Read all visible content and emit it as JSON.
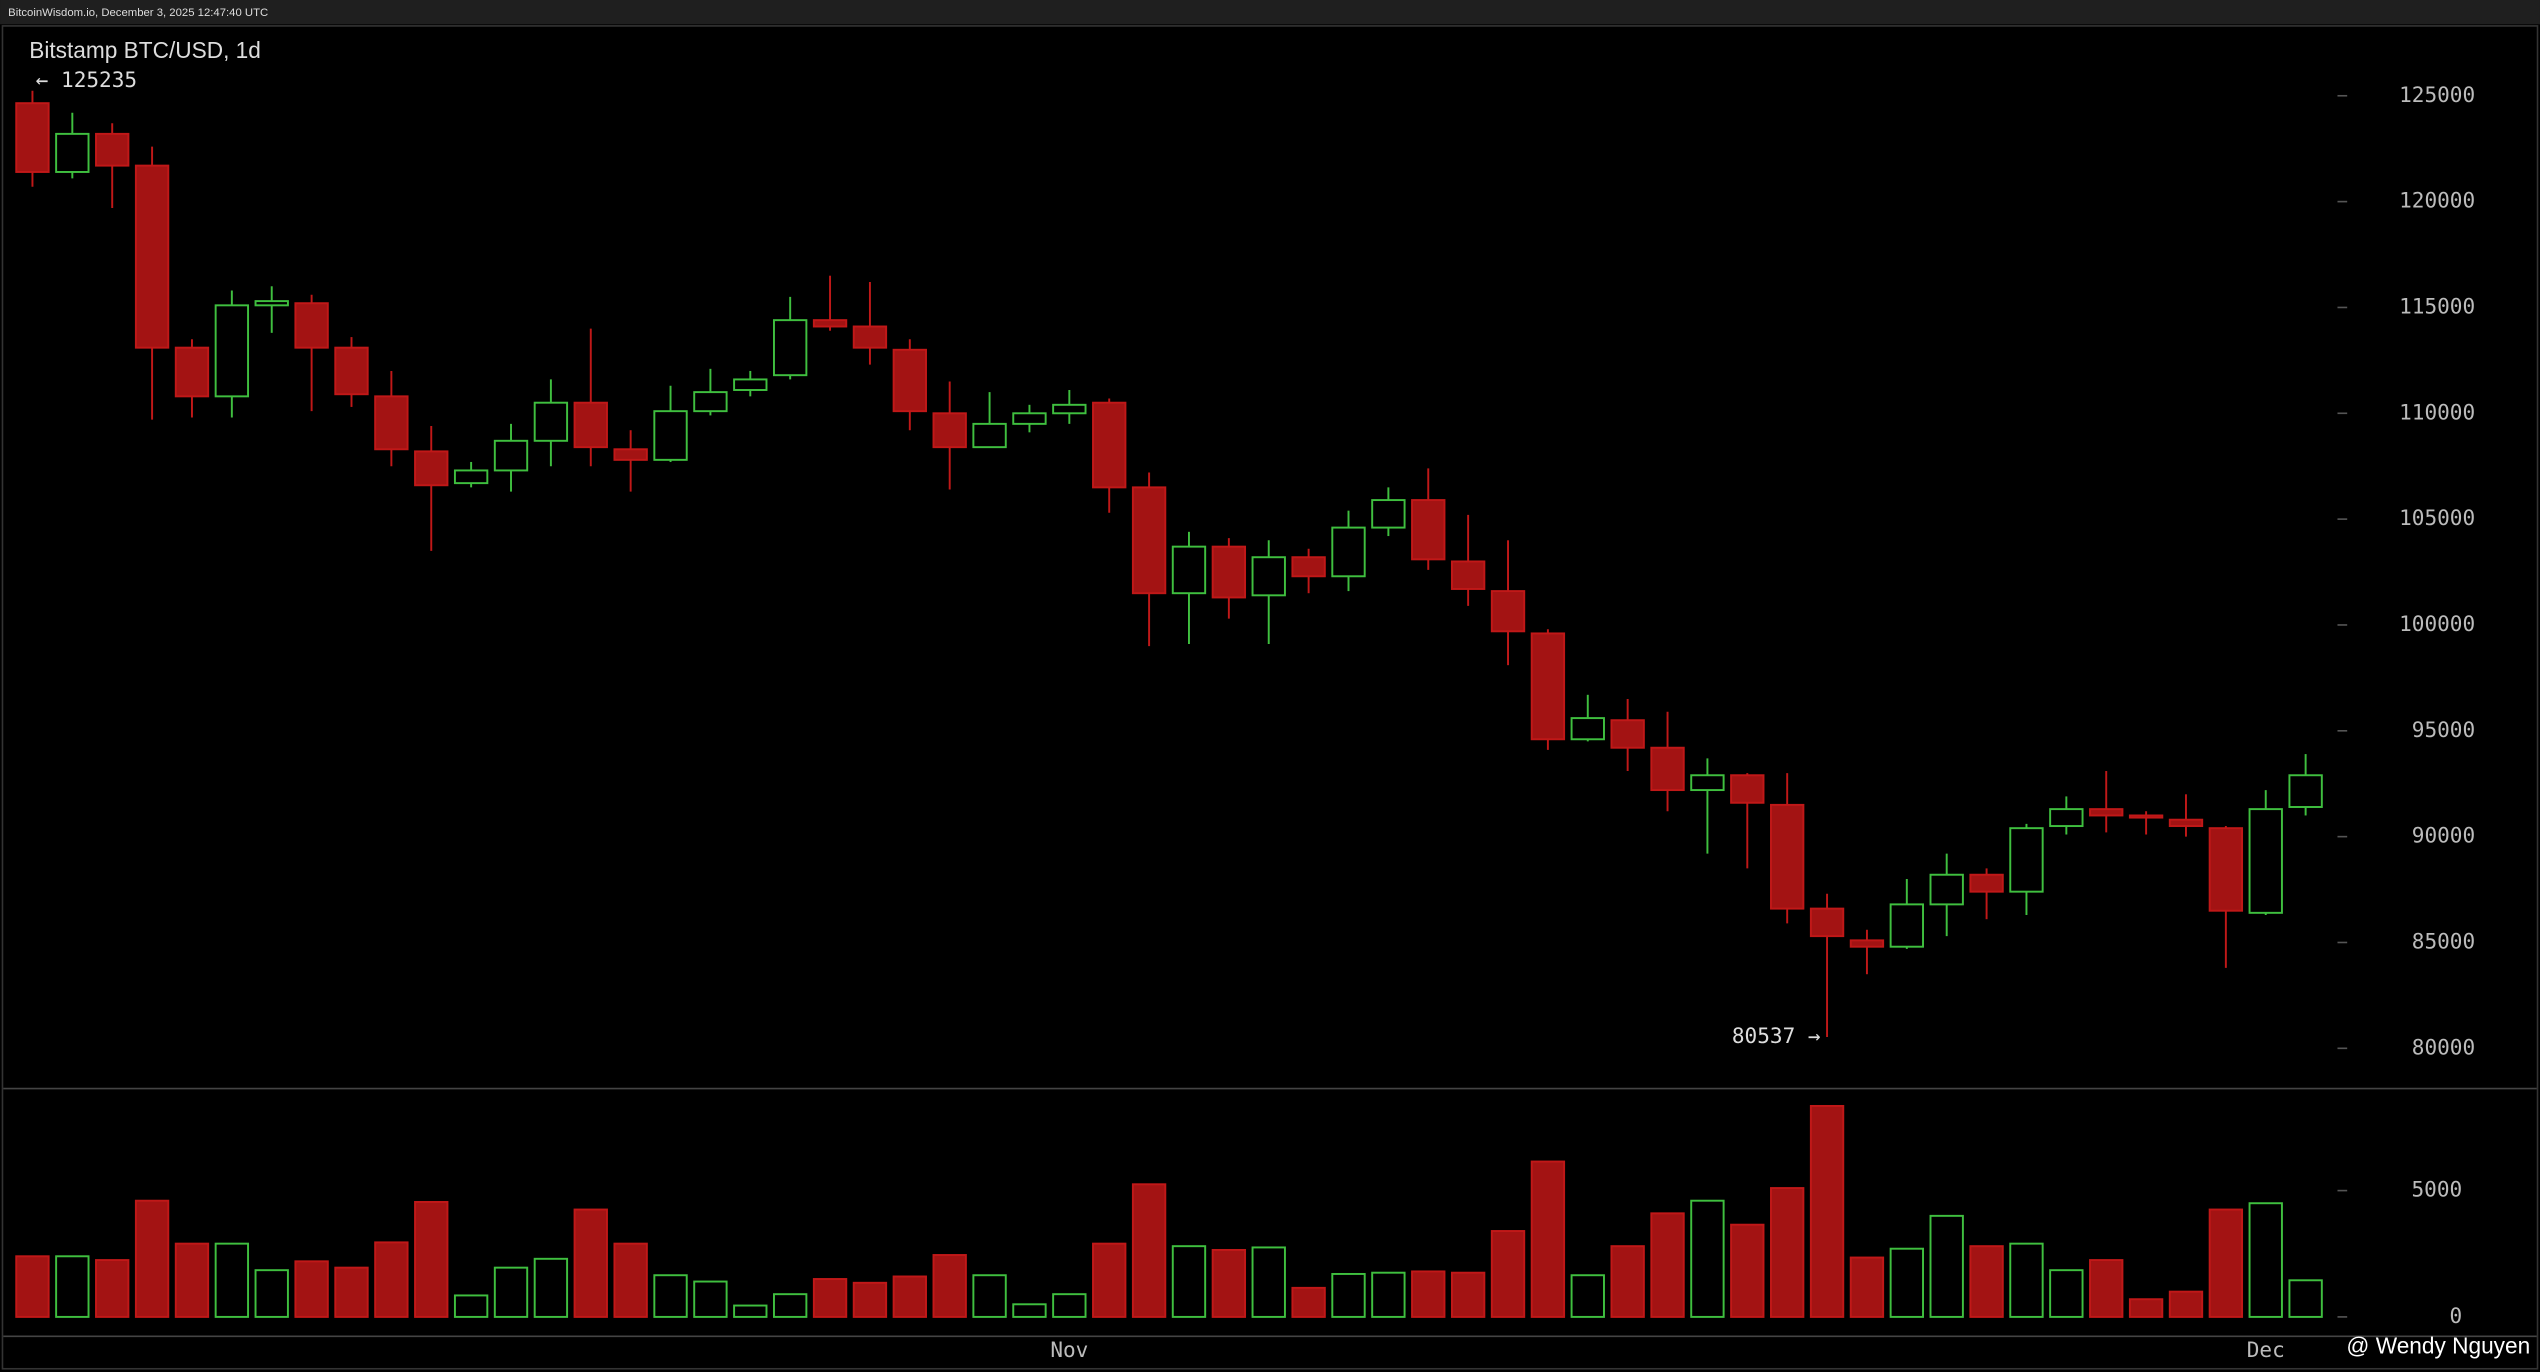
{
  "header": {
    "text": "BitcoinWisdom.io, December 3, 2025 12:47:40 UTC"
  },
  "watermark": "@ Wendy Nguyen",
  "chart_data": [
    {
      "type": "candlestick",
      "title": "Bitstamp BTC/USD, 1d",
      "up_color": "#3fbf3f",
      "down_color": "#a31313",
      "open": [
        124650,
        121400,
        123200,
        121700,
        113100,
        110800,
        115100,
        115200,
        113100,
        110800,
        108200,
        106700,
        107300,
        108700,
        110500,
        108300,
        107800,
        110100,
        111100,
        111800,
        114400,
        114100,
        113000,
        110000,
        108400,
        109500,
        110000,
        110500,
        106500,
        101500,
        103700,
        101400,
        103200,
        102300,
        104600,
        105900,
        103000,
        101600,
        99600,
        94600,
        95500,
        94200,
        92200,
        92900,
        91500,
        86600,
        85100,
        84800,
        86800,
        88200,
        87400,
        90500,
        91300,
        91000,
        90800,
        90400,
        86400,
        91400
      ],
      "high": [
        125235,
        124200,
        123700,
        122600,
        113500,
        115800,
        116000,
        115600,
        113600,
        112000,
        109400,
        107700,
        109500,
        111600,
        114000,
        109200,
        111300,
        112100,
        112000,
        115500,
        116500,
        116200,
        113500,
        111500,
        111000,
        110400,
        111100,
        110700,
        107200,
        104400,
        104100,
        104000,
        103600,
        105400,
        106500,
        107400,
        105200,
        104000,
        99800,
        96700,
        96500,
        95900,
        93700,
        93000,
        93000,
        87300,
        85600,
        88000,
        89200,
        88500,
        90600,
        91900,
        93100,
        91200,
        92000,
        90500,
        92200,
        93900
      ],
      "low": [
        120700,
        121100,
        119700,
        109700,
        109800,
        109800,
        113800,
        110100,
        110300,
        107500,
        103500,
        106500,
        106300,
        107500,
        107500,
        106300,
        107700,
        109900,
        110800,
        111600,
        113900,
        112300,
        109200,
        106400,
        108400,
        109100,
        109500,
        105300,
        99000,
        99100,
        100300,
        99100,
        101500,
        101600,
        104200,
        102600,
        100900,
        98100,
        94100,
        94500,
        93100,
        91200,
        89200,
        88500,
        85900,
        80537,
        83500,
        84700,
        85300,
        86100,
        86300,
        90100,
        90200,
        90100,
        90000,
        83800,
        86300,
        91000
      ],
      "close": [
        121400,
        123200,
        121700,
        113100,
        110800,
        115100,
        115300,
        113100,
        110900,
        108300,
        106600,
        107300,
        108700,
        110500,
        108400,
        107800,
        110100,
        111000,
        111600,
        114400,
        114100,
        113100,
        110100,
        108400,
        109500,
        110000,
        110400,
        106500,
        101500,
        103700,
        101300,
        103200,
        102300,
        104600,
        105900,
        103100,
        101700,
        99700,
        94600,
        95600,
        94200,
        92200,
        92900,
        91600,
        86600,
        85300,
        84800,
        86800,
        88200,
        87400,
        90400,
        91300,
        91000,
        90900,
        90500,
        86500,
        91300,
        92900
      ],
      "ylim": [
        78100,
        128300
      ],
      "yticks": [
        80000,
        85000,
        90000,
        95000,
        100000,
        105000,
        110000,
        115000,
        120000,
        125000
      ],
      "annotations": [
        {
          "value": 125235,
          "label": "← 125235"
        },
        {
          "value": 80537,
          "label": "80537 →"
        }
      ]
    },
    {
      "type": "bar",
      "categories": [
        null,
        null,
        null,
        null,
        null,
        null,
        null,
        null,
        null,
        null,
        null,
        null,
        null,
        null,
        null,
        null,
        null,
        null,
        null,
        null,
        null,
        null,
        null,
        null,
        null,
        null,
        "Nov",
        null,
        null,
        null,
        null,
        null,
        null,
        null,
        null,
        null,
        null,
        null,
        null,
        null,
        null,
        null,
        null,
        null,
        null,
        null,
        null,
        null,
        null,
        null,
        null,
        null,
        null,
        null,
        null,
        null,
        "Dec",
        null
      ],
      "values": [
        2400,
        2400,
        2250,
        4600,
        2900,
        2900,
        1850,
        2200,
        1950,
        2950,
        4550,
        850,
        1950,
        2300,
        4250,
        2900,
        1650,
        1400,
        450,
        900,
        1500,
        1350,
        1600,
        2450,
        1650,
        500,
        900,
        2900,
        5250,
        2800,
        2650,
        2750,
        1150,
        1700,
        1750,
        1800,
        1750,
        3400,
        6150,
        1650,
        2800,
        4100,
        4600,
        3650,
        5100,
        8350,
        2350,
        2700,
        4000,
        2800,
        2900,
        1850,
        2250,
        700,
        1000,
        4250,
        4500,
        1450
      ],
      "ylim": [
        -770,
        9040
      ],
      "yticks": [
        0,
        5000
      ]
    }
  ]
}
